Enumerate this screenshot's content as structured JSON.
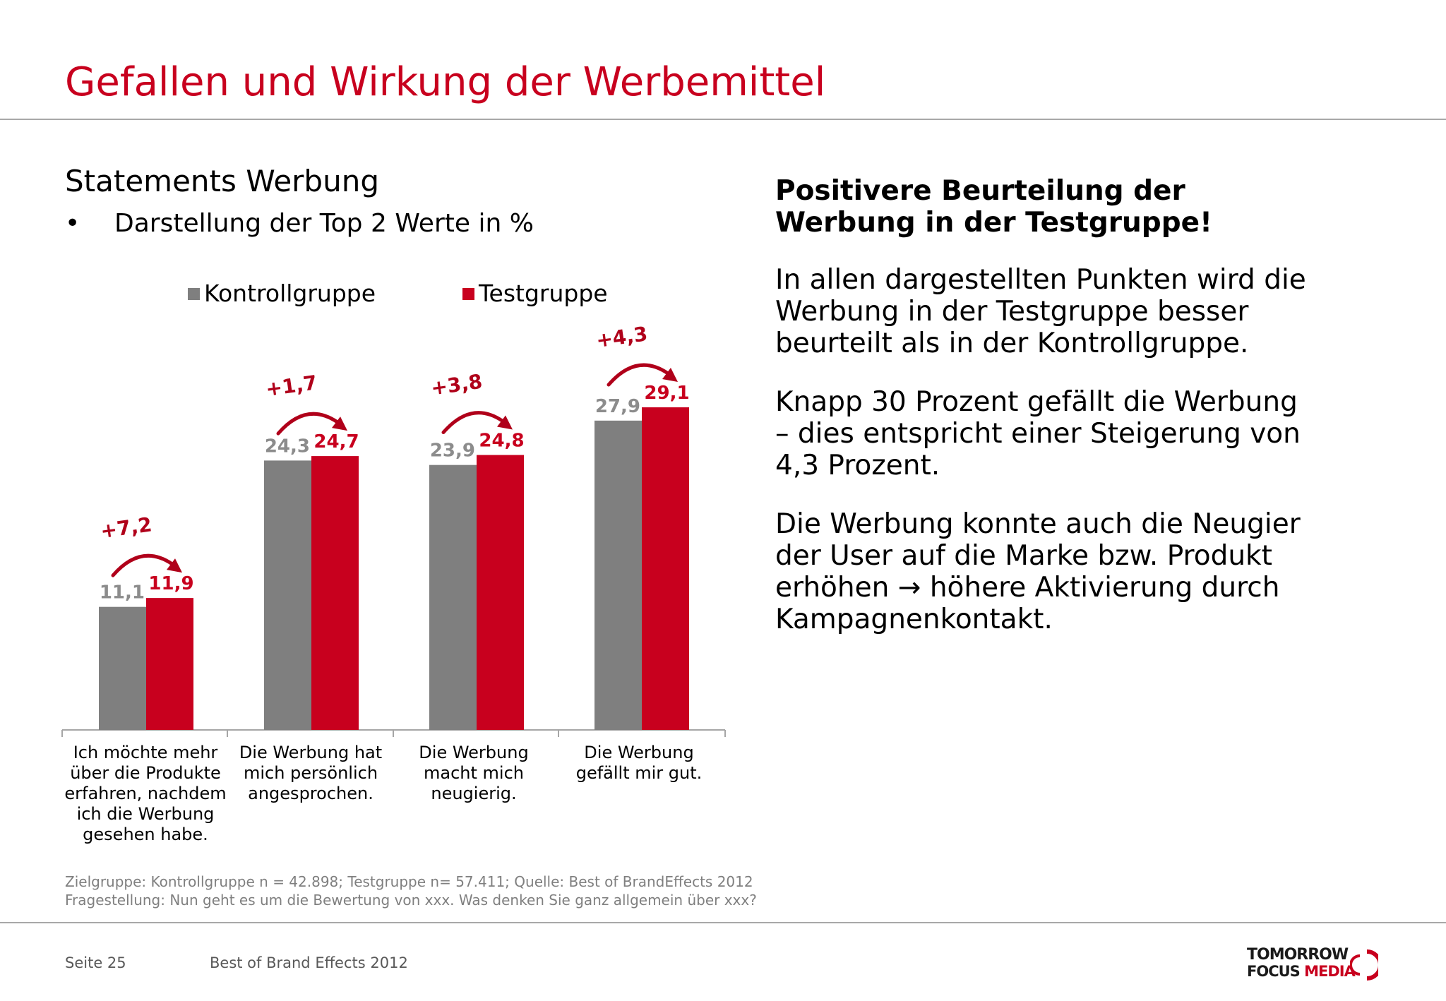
{
  "header": {
    "title": "Gefallen und Wirkung der Werbemittel"
  },
  "left": {
    "subtitle": "Statements Werbung",
    "bullet_marker": "•",
    "bullet": "Darstellung der Top 2 Werte in %"
  },
  "chart_data": {
    "type": "bar",
    "categories": [
      "Ich möchte mehr über die Produkte erfahren, nachdem ich die Werbung gesehen habe.",
      "Die Werbung hat mich persönlich angesprochen.",
      "Die Werbung macht mich neugierig.",
      "Die Werbung gefällt mir gut."
    ],
    "series": [
      {
        "name": "Kontrollgruppe",
        "values": [
          11.1,
          24.3,
          23.9,
          27.9
        ],
        "labels": [
          "11,1",
          "24,3",
          "23,9",
          "27,9"
        ],
        "color": "#7f7f7f",
        "label_color": "#8c8c8c"
      },
      {
        "name": "Testgruppe",
        "values": [
          11.9,
          24.7,
          24.8,
          29.1
        ],
        "labels": [
          "11,9",
          "24,7",
          "24,8",
          "29,1"
        ],
        "color": "#c8001e",
        "label_color": "#c8001e"
      }
    ],
    "differences": [
      "+7,2",
      "+1,7",
      "+3,8",
      "+4,3"
    ],
    "ylim": [
      0,
      33
    ],
    "legend_position": "top",
    "grid": false
  },
  "right": {
    "heading_line1": "Positivere Beurteilung der",
    "heading_line2": "Werbung in der Testgruppe!",
    "p1_l1": "In allen dargestellten Punkten wird die",
    "p1_l2": "Werbung in der Testgruppe besser",
    "p1_l3": "beurteilt als in der Kontrollgruppe.",
    "p2_l1": "Knapp 30 Prozent gefällt die Werbung",
    "p2_l2": "– dies entspricht einer Steigerung von",
    "p2_l3": "4,3 Prozent.",
    "p3_l1": "Die Werbung konnte auch die Neugier",
    "p3_l2": "der User auf die Marke bzw. Produkt",
    "p3_l3": "erhöhen → höhere Aktivierung durch",
    "p3_l4": "Kampagnenkontakt."
  },
  "notes": {
    "line1": "Zielgruppe: Kontrollgruppe n = 42.898; Testgruppe n= 57.411; Quelle: Best of BrandEffects 2012",
    "line2": "Fragestellung: Nun geht es um die Bewertung von xxx. Was denken Sie ganz allgemein über xxx?"
  },
  "footer": {
    "page": "Seite 25",
    "source": "Best of Brand Effects 2012",
    "logo_line1": "TOMORROW",
    "logo_line2a": "FOCUS ",
    "logo_line2b": "MEDIA"
  },
  "colors": {
    "accent": "#c8001e",
    "gray_bar": "#7f7f7f"
  }
}
